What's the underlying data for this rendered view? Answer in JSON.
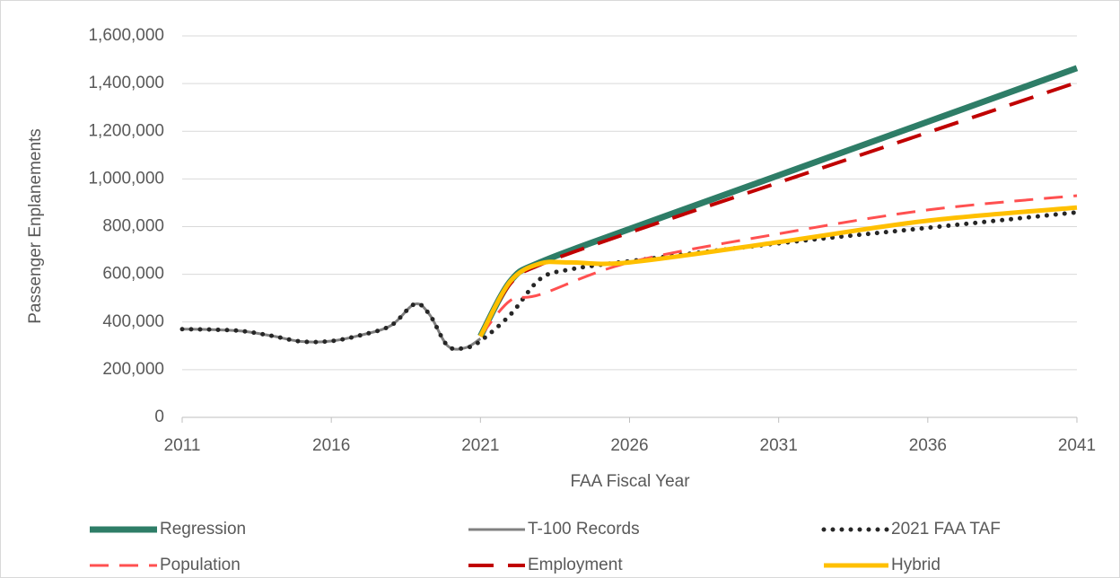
{
  "chart_data": {
    "type": "line",
    "xlabel": "FAA Fiscal Year",
    "ylabel": "Passenger Enplanements",
    "xlim": [
      2011,
      2041
    ],
    "xticks": [
      2011,
      2016,
      2021,
      2026,
      2031,
      2036,
      2041
    ],
    "ylim": [
      0,
      1600000
    ],
    "yticks": [
      0,
      {
        "value": 200000,
        "label": "200,000"
      },
      {
        "value": 400000,
        "label": "400,000"
      },
      {
        "value": 600000,
        "label": "600,000"
      },
      {
        "value": 800000,
        "label": "800,000"
      },
      {
        "value": 1000000,
        "label": "1,000,000"
      },
      {
        "value": 1200000,
        "label": "1,200,000"
      },
      {
        "value": 1400000,
        "label": "1,400,000"
      },
      {
        "value": 1600000,
        "label": "1,600,000"
      }
    ],
    "grid": true,
    "legend": "bottom",
    "series": [
      {
        "name": "Regression",
        "color": "#2e7d67",
        "style": "solid",
        "line_width": 7,
        "x": [
          2021,
          2022,
          2023,
          2026,
          2031,
          2036,
          2041
        ],
        "values": [
          340000,
          570000,
          650000,
          790000,
          1015000,
          1240000,
          1465000
        ]
      },
      {
        "name": "T-100 Records",
        "color": "#808080",
        "style": "solid",
        "line_width": 3,
        "x": [
          2011,
          2012,
          2013,
          2014,
          2015,
          2016,
          2017,
          2018,
          2018.8,
          2019.3,
          2019.9,
          2020.5,
          2021
        ],
        "values": [
          370000,
          368000,
          362000,
          342000,
          318000,
          320000,
          345000,
          385000,
          475000,
          430000,
          300000,
          292000,
          330000
        ]
      },
      {
        "name": "2021 FAA TAF",
        "color": "#262626",
        "style": "dotted",
        "line_width": 5,
        "x": [
          2011,
          2012,
          2013,
          2014,
          2015,
          2016,
          2017,
          2018,
          2018.8,
          2019.3,
          2019.9,
          2020.5,
          2021,
          2022,
          2023,
          2024,
          2026,
          2031,
          2036,
          2041
        ],
        "values": [
          370000,
          368000,
          362000,
          342000,
          318000,
          320000,
          345000,
          385000,
          475000,
          430000,
          300000,
          292000,
          320000,
          430000,
          580000,
          620000,
          655000,
          730000,
          795000,
          860000
        ]
      },
      {
        "name": "Population",
        "color": "#ff5050",
        "style": "dashed",
        "line_width": 3,
        "x": [
          2021,
          2022,
          2023,
          2026,
          2031,
          2036,
          2041
        ],
        "values": [
          340000,
          490000,
          515000,
          650000,
          770000,
          870000,
          930000
        ]
      },
      {
        "name": "Employment",
        "color": "#c00000",
        "style": "dashed",
        "line_width": 4,
        "x": [
          2021,
          2022,
          2023,
          2026,
          2031,
          2036,
          2041
        ],
        "values": [
          340000,
          560000,
          640000,
          775000,
          985000,
          1195000,
          1405000
        ]
      },
      {
        "name": "Hybrid",
        "color": "#ffc000",
        "style": "solid",
        "line_width": 5,
        "x": [
          2021,
          2022,
          2023,
          2024,
          2026,
          2031,
          2036,
          2041
        ],
        "values": [
          340000,
          570000,
          645000,
          650000,
          650000,
          735000,
          825000,
          880000
        ]
      }
    ]
  }
}
